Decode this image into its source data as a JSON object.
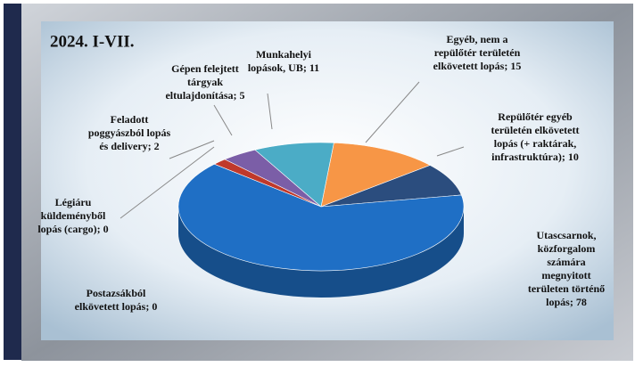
{
  "chart_data": {
    "type": "pie3d",
    "title": "2024. I-VII.",
    "categories": [
      [
        "Egyéb, nem a",
        "repülőtér területén",
        "elkövetett lopás; 15"
      ],
      [
        "Repülőtér egyéb",
        "területén elkövetett",
        "lopás (+ raktárak,",
        "infrastruktúra); 10"
      ],
      [
        "Utascsarnok,",
        "közforgalom",
        "számára",
        "megnyitott",
        "területen történő",
        "lopás; 78"
      ],
      [
        "Postazsákból",
        "elkövetett lopás; 0"
      ],
      [
        "Légiáru",
        "küldeményből",
        "lopás (cargo); 0"
      ],
      [
        "Feladott",
        "poggyászból lopás",
        "és delivery; 2"
      ],
      [
        "Gépen felejtett",
        "tárgyak",
        "eltulajdonítása; 5"
      ],
      [
        "Munkahelyi",
        "lopások, UB; 11"
      ]
    ],
    "values": [
      15,
      10,
      78,
      0,
      0,
      2,
      5,
      11
    ],
    "colors": [
      "#f79646",
      "#2b4d7e",
      "#1f6fc5",
      "#8a8a8a",
      "#8a8a8a",
      "#c0392b",
      "#7b5ea7",
      "#4bacc6"
    ]
  }
}
